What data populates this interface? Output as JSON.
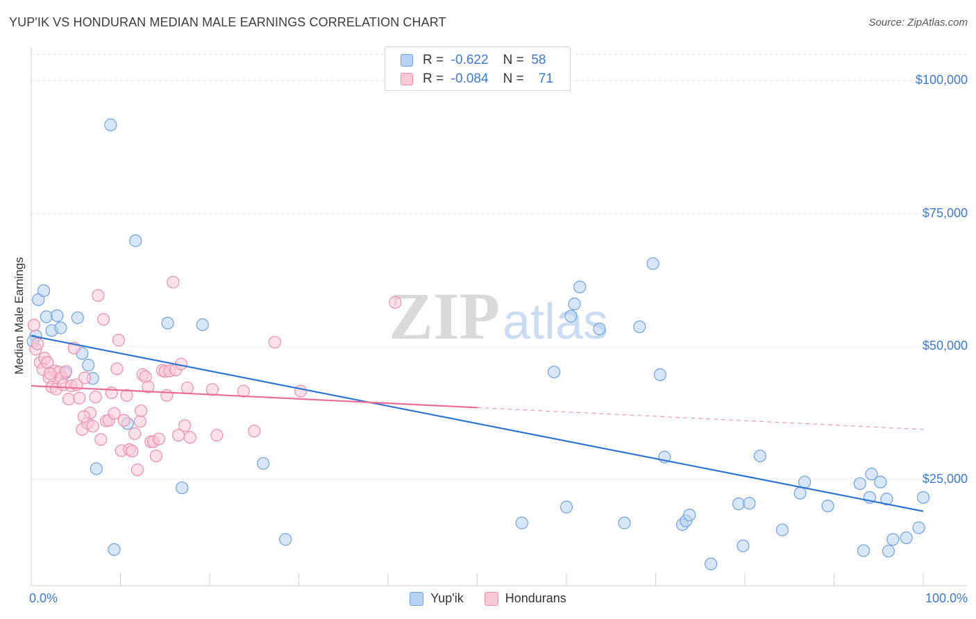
{
  "chart_data": {
    "type": "scatter",
    "title": "YUP'IK VS HONDURAN MEDIAN MALE EARNINGS CORRELATION CHART",
    "source": "Source: ZipAtlas.com",
    "watermark": {
      "bold": "ZIP",
      "light": "atlas"
    },
    "ylabel": "Median Male Earnings",
    "xlim": [
      0,
      100
    ],
    "ylim": [
      5000,
      105000
    ],
    "y_ticks": [
      {
        "value": 25000,
        "label": "$25,000"
      },
      {
        "value": 50000,
        "label": "$50,000"
      },
      {
        "value": 75000,
        "label": "$75,000"
      },
      {
        "value": 100000,
        "label": "$100,000"
      }
    ],
    "x_tick_labels": {
      "min": "0.0%",
      "max": "100.0%"
    },
    "stats": [
      {
        "r_label": "R =",
        "r": "-0.622",
        "n_label": "N =",
        "n": "58"
      },
      {
        "r_label": "R =",
        "r": "-0.084",
        "n_label": "N =",
        "n": "71"
      }
    ],
    "series": [
      {
        "name": "Yup'ik",
        "color": "#6fa0e0",
        "fill": "#b8d3f3",
        "line_color": "#2f74d0",
        "trend": {
          "x0": 0,
          "y0": 52000,
          "x1": 100,
          "y1": 19000
        },
        "points": [
          [
            0.5,
            52000
          ],
          [
            0.8,
            58800
          ],
          [
            1.4,
            60500
          ],
          [
            1.7,
            55600
          ],
          [
            2.3,
            53000
          ],
          [
            2.9,
            55800
          ],
          [
            3.3,
            53500
          ],
          [
            3.8,
            45000
          ],
          [
            5.2,
            55400
          ],
          [
            5.7,
            48700
          ],
          [
            6.4,
            46500
          ],
          [
            6.9,
            44000
          ],
          [
            7.3,
            27000
          ],
          [
            8.9,
            91700
          ],
          [
            9.3,
            11800
          ],
          [
            10.8,
            35500
          ],
          [
            11.7,
            69900
          ],
          [
            15.3,
            54400
          ],
          [
            16.9,
            23400
          ],
          [
            19.2,
            54100
          ],
          [
            26.0,
            28000
          ],
          [
            28.5,
            13700
          ],
          [
            55.0,
            16800
          ],
          [
            58.6,
            45200
          ],
          [
            60.0,
            19800
          ],
          [
            60.5,
            55700
          ],
          [
            60.9,
            58000
          ],
          [
            61.5,
            61200
          ],
          [
            63.7,
            53300
          ],
          [
            66.5,
            16800
          ],
          [
            68.2,
            53700
          ],
          [
            69.7,
            65600
          ],
          [
            70.5,
            44700
          ],
          [
            71.0,
            29200
          ],
          [
            73.0,
            16500
          ],
          [
            73.4,
            17200
          ],
          [
            73.8,
            18300
          ],
          [
            76.2,
            9100
          ],
          [
            79.3,
            20400
          ],
          [
            79.8,
            12500
          ],
          [
            80.5,
            20500
          ],
          [
            81.7,
            29400
          ],
          [
            84.2,
            15500
          ],
          [
            86.2,
            22400
          ],
          [
            86.7,
            24500
          ],
          [
            89.3,
            20000
          ],
          [
            92.9,
            24200
          ],
          [
            93.3,
            11600
          ],
          [
            94.0,
            21600
          ],
          [
            94.2,
            26000
          ],
          [
            95.2,
            24500
          ],
          [
            95.9,
            21300
          ],
          [
            96.1,
            11500
          ],
          [
            96.6,
            13700
          ],
          [
            98.1,
            14000
          ],
          [
            99.5,
            15900
          ],
          [
            100.0,
            21600
          ],
          [
            0.2,
            51000
          ]
        ]
      },
      {
        "name": "Hondurans",
        "color": "#ec8fae",
        "fill": "#fbc8d6",
        "line_color": "#e86d97",
        "trend": {
          "x0": 0,
          "y0": 42600,
          "x1": 50,
          "y1": 38500
        },
        "trend_dashed": {
          "x0": 50,
          "y0": 38500,
          "x1": 100,
          "y1": 34400
        },
        "points": [
          [
            0.3,
            54000
          ],
          [
            0.5,
            49500
          ],
          [
            0.7,
            50500
          ],
          [
            1.0,
            47000
          ],
          [
            1.3,
            45700
          ],
          [
            1.5,
            47800
          ],
          [
            1.8,
            47000
          ],
          [
            2.0,
            44100
          ],
          [
            2.3,
            42400
          ],
          [
            2.6,
            45400
          ],
          [
            2.8,
            42000
          ],
          [
            3.1,
            45200
          ],
          [
            3.4,
            44100
          ],
          [
            3.6,
            42800
          ],
          [
            3.9,
            45300
          ],
          [
            4.2,
            40100
          ],
          [
            4.5,
            42600
          ],
          [
            4.8,
            49700
          ],
          [
            5.1,
            42800
          ],
          [
            5.4,
            40300
          ],
          [
            5.7,
            34400
          ],
          [
            6.0,
            44100
          ],
          [
            6.3,
            35600
          ],
          [
            6.6,
            37500
          ],
          [
            6.9,
            35000
          ],
          [
            7.2,
            40500
          ],
          [
            7.5,
            59600
          ],
          [
            7.8,
            32500
          ],
          [
            8.1,
            55100
          ],
          [
            8.4,
            36000
          ],
          [
            8.7,
            36100
          ],
          [
            9.0,
            41300
          ],
          [
            9.3,
            37400
          ],
          [
            9.6,
            45800
          ],
          [
            9.8,
            51200
          ],
          [
            10.1,
            30400
          ],
          [
            10.4,
            36100
          ],
          [
            10.7,
            40800
          ],
          [
            11.0,
            30600
          ],
          [
            11.3,
            30300
          ],
          [
            11.6,
            33600
          ],
          [
            11.9,
            26800
          ],
          [
            12.2,
            35900
          ],
          [
            12.5,
            44700
          ],
          [
            12.8,
            44300
          ],
          [
            13.1,
            42400
          ],
          [
            13.4,
            32100
          ],
          [
            13.7,
            32100
          ],
          [
            14.0,
            29400
          ],
          [
            14.3,
            32600
          ],
          [
            14.7,
            45500
          ],
          [
            15.0,
            45300
          ],
          [
            15.5,
            45400
          ],
          [
            15.9,
            62100
          ],
          [
            16.2,
            45600
          ],
          [
            16.5,
            33300
          ],
          [
            16.8,
            46700
          ],
          [
            17.2,
            35100
          ],
          [
            17.5,
            42200
          ],
          [
            17.8,
            32900
          ],
          [
            20.3,
            41900
          ],
          [
            20.8,
            33300
          ],
          [
            23.8,
            41600
          ],
          [
            25.0,
            34100
          ],
          [
            27.3,
            50800
          ],
          [
            30.2,
            41600
          ],
          [
            40.8,
            58300
          ],
          [
            5.9,
            36800
          ],
          [
            12.3,
            37900
          ],
          [
            2.1,
            44900
          ],
          [
            15.2,
            40800
          ]
        ]
      }
    ]
  }
}
